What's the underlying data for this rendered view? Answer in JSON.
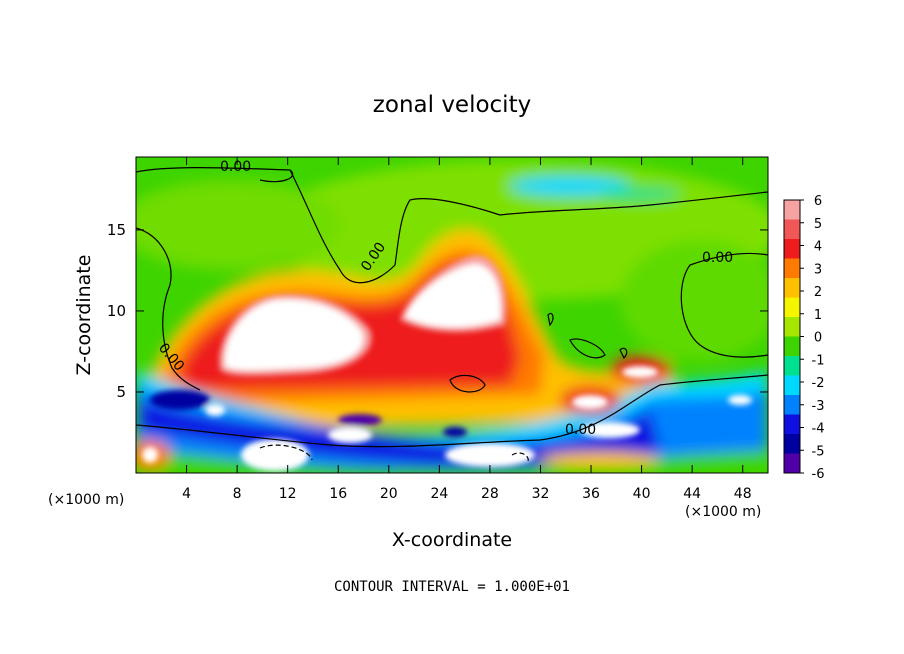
{
  "chart_data": {
    "type": "heatmap",
    "title": "zonal velocity",
    "xlabel": "X-coordinate",
    "ylabel": "Z-coordinate",
    "x_unit": "(×1000 m)",
    "xlim": [
      0,
      50
    ],
    "ylim": [
      0,
      19.5
    ],
    "x_ticks": [
      4,
      8,
      12,
      16,
      20,
      24,
      28,
      32,
      36,
      40,
      44,
      48
    ],
    "y_ticks": [
      5,
      10,
      15
    ],
    "colorbar": {
      "ticks": [
        6,
        5,
        4,
        3,
        2,
        1,
        0,
        -1,
        -2,
        -3,
        -4,
        -5,
        -6
      ],
      "colors": [
        "#f7a3a3",
        "#f25757",
        "#ee1c1c",
        "#ff7a00",
        "#ffc000",
        "#f5f500",
        "#a6e600",
        "#3ed400",
        "#00e090",
        "#00d8ff",
        "#0082ff",
        "#1010e0",
        "#0000a0",
        "#5000a8"
      ]
    },
    "contour_label": "0.00",
    "footnote": "CONTOUR INTERVAL = 1.000E+01"
  }
}
